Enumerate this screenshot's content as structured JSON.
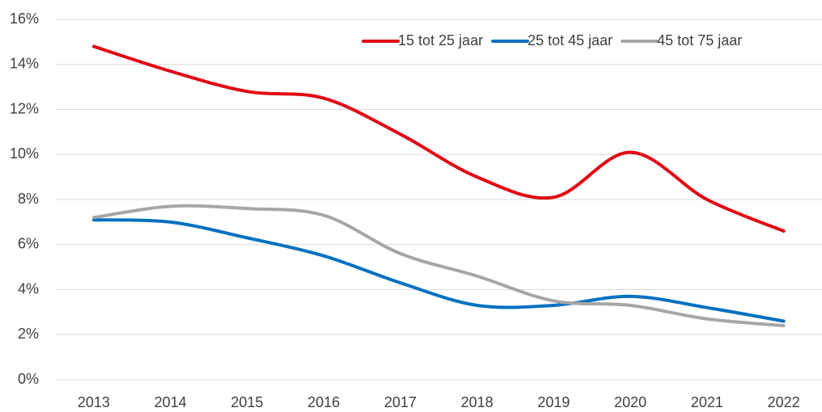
{
  "chart_data": {
    "type": "line",
    "categories": [
      "2013",
      "2014",
      "2015",
      "2016",
      "2017",
      "2018",
      "2019",
      "2020",
      "2021",
      "2022"
    ],
    "series": [
      {
        "name": "15 tot 25 jaar",
        "color": "#e30613",
        "values": [
          14.8,
          13.7,
          12.8,
          12.5,
          10.9,
          9.0,
          8.1,
          10.1,
          8.0,
          6.6
        ]
      },
      {
        "name": "25 tot 45 jaar",
        "color": "#0070c0",
        "values": [
          7.1,
          7.0,
          6.3,
          5.5,
          4.3,
          3.3,
          3.3,
          3.7,
          3.2,
          2.6
        ]
      },
      {
        "name": "45 tot 75 jaar",
        "color": "#a6a6a6",
        "values": [
          7.2,
          7.7,
          7.6,
          7.3,
          5.6,
          4.6,
          3.5,
          3.3,
          2.7,
          2.4
        ]
      }
    ],
    "ylim": [
      0,
      16
    ],
    "yticks": [
      {
        "value": 0,
        "label": "0%"
      },
      {
        "value": 2,
        "label": "2%"
      },
      {
        "value": 4,
        "label": "4%"
      },
      {
        "value": 6,
        "label": "6%"
      },
      {
        "value": 8,
        "label": "8%"
      },
      {
        "value": 10,
        "label": "10%"
      },
      {
        "value": 12,
        "label": "12%"
      },
      {
        "value": 14,
        "label": "14%"
      },
      {
        "value": 16,
        "label": "16%"
      }
    ],
    "grid": true,
    "smooth": true,
    "legend": "top-right"
  }
}
